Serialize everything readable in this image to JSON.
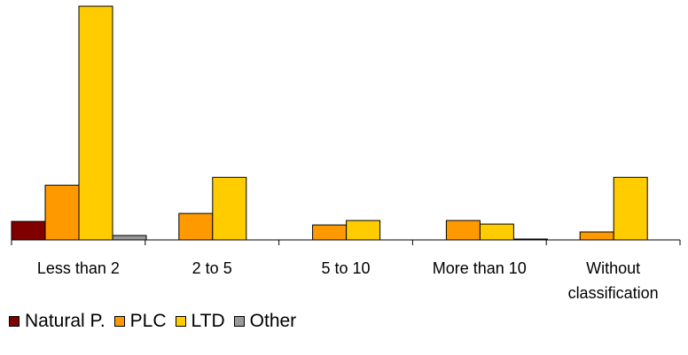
{
  "chart_data": {
    "type": "bar",
    "title": "",
    "xlabel": "",
    "ylabel": "",
    "categories": [
      [
        "Less than 2"
      ],
      [
        "2 to 5"
      ],
      [
        "5 to 10"
      ],
      [
        "More than 10"
      ],
      [
        "Without",
        "classification"
      ]
    ],
    "series": [
      {
        "name": "Natural P.",
        "color": "#800000",
        "values": [
          21,
          0,
          0,
          0,
          0
        ]
      },
      {
        "name": "PLC",
        "color": "#ff9900",
        "values": [
          62,
          30,
          17,
          22,
          9
        ]
      },
      {
        "name": "LTD",
        "color": "#ffcc00",
        "values": [
          265,
          71,
          22,
          18,
          71
        ]
      },
      {
        "name": "Other",
        "color": "#999999",
        "values": [
          5,
          0,
          0,
          1,
          0
        ]
      }
    ],
    "ylim": [
      0,
      262
    ],
    "grid": false,
    "legend_position": "bottom-left"
  }
}
